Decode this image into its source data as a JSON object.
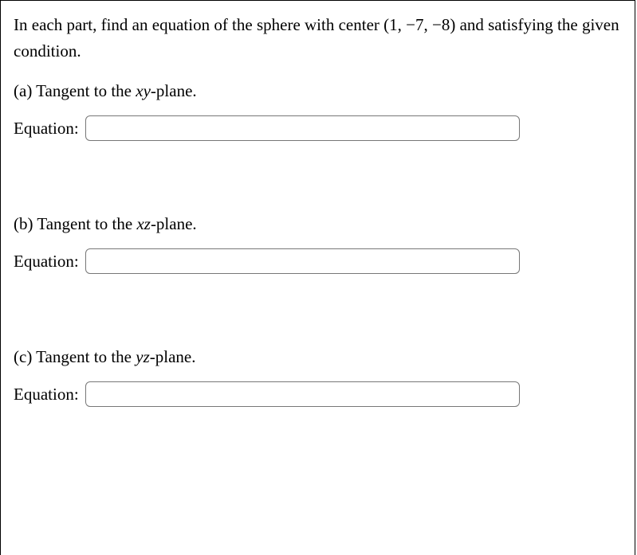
{
  "intro_html": "In each part, find an equation of the sphere with center (1, −7, −8) and satisfying the given condition.",
  "equation_label": "Equation:",
  "parts": {
    "a": {
      "label_prefix": "(a) Tangent to the ",
      "plane_var": "xy",
      "label_suffix": "-plane."
    },
    "b": {
      "label_prefix": "(b) Tangent to the ",
      "plane_var": "xz",
      "label_suffix": "-plane."
    },
    "c": {
      "label_prefix": "(c) Tangent to the ",
      "plane_var": "yz",
      "label_suffix": "-plane."
    }
  },
  "input_values": {
    "a": "",
    "b": "",
    "c": ""
  },
  "colors": {
    "background": "#ffffff",
    "text": "#000000",
    "border": "#000000",
    "input_border": "#777777"
  },
  "font_family": "Times New Roman",
  "font_size_pt": 16
}
